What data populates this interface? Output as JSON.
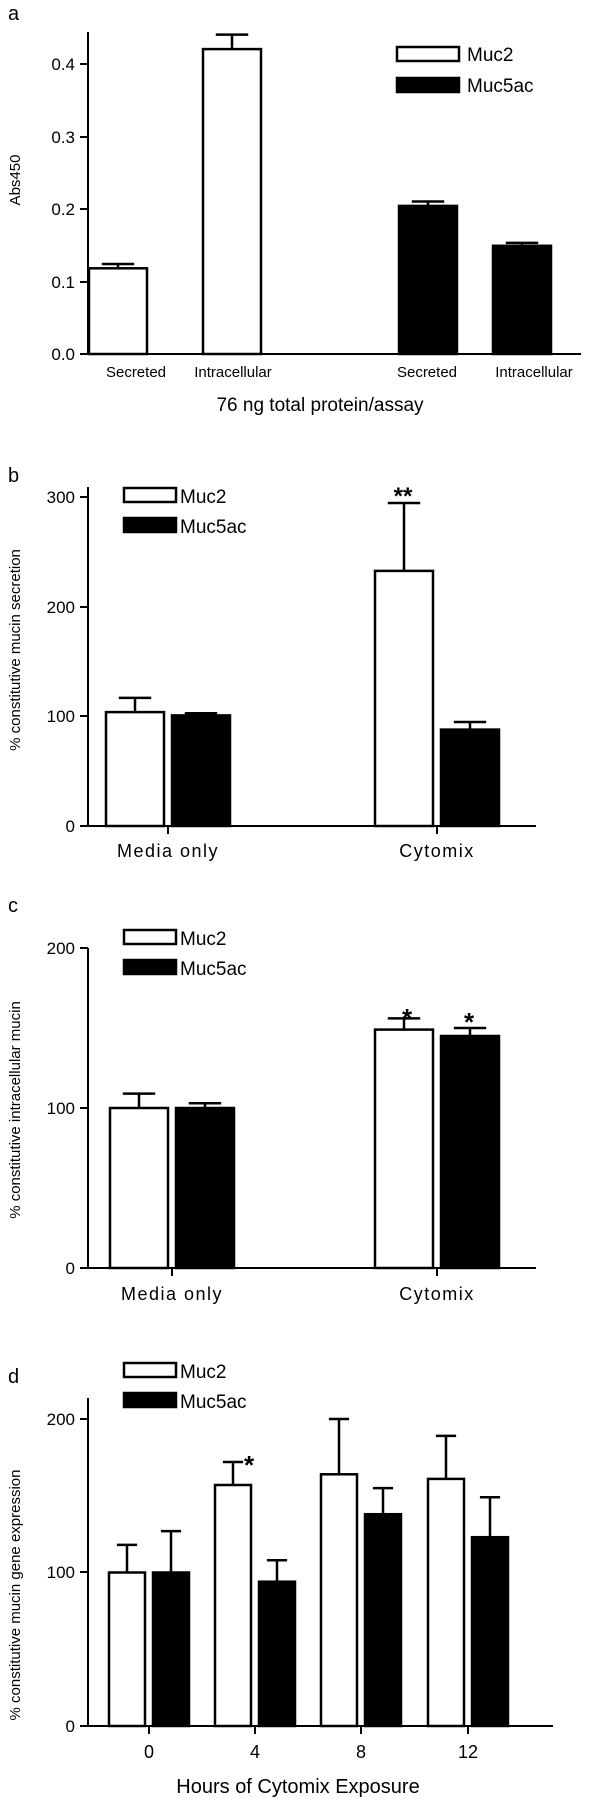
{
  "chart_data": [
    {
      "panel": "a",
      "type": "bar",
      "title": "",
      "ylabel": "Abs450",
      "xlabel": "76 ng total protein/assay",
      "ylim": [
        0,
        0.45
      ],
      "yticks": [
        0.0,
        0.1,
        0.2,
        0.3,
        0.4
      ],
      "ytick_labels": [
        "0.0",
        "0.1",
        "0.2",
        "0.3",
        "0.4"
      ],
      "grid": false,
      "legend": "top-right",
      "series": [
        {
          "name": "Muc2",
          "color": "#ffffff",
          "categories": [
            "Secreted",
            "Intracellular"
          ],
          "values": [
            0.118,
            0.42
          ],
          "errors": [
            0.006,
            0.02
          ]
        },
        {
          "name": "Muc5ac",
          "color": "#000000",
          "categories": [
            "Secreted",
            "Intracellular"
          ],
          "values": [
            0.204,
            0.149
          ],
          "errors": [
            0.006,
            0.004
          ]
        }
      ],
      "annotations": []
    },
    {
      "panel": "b",
      "type": "bar",
      "title": "",
      "ylabel": "% constitutive mucin secretion",
      "xlabel": "",
      "categories": [
        "Media only",
        "Cytomix"
      ],
      "ylim": [
        0,
        320
      ],
      "yticks": [
        0,
        100,
        200,
        300
      ],
      "ytick_labels": [
        "0",
        "100",
        "200",
        "300"
      ],
      "grid": false,
      "legend": "top-left",
      "series": [
        {
          "name": "Muc2",
          "color": "#ffffff",
          "values": [
            104,
            233
          ],
          "errors": [
            13,
            62
          ]
        },
        {
          "name": "Muc5ac",
          "color": "#000000",
          "values": [
            101,
            88
          ],
          "errors": [
            2,
            7
          ]
        }
      ],
      "annotations": [
        {
          "text": "**",
          "category": "Cytomix",
          "series": "Muc2"
        }
      ]
    },
    {
      "panel": "c",
      "type": "bar",
      "title": "",
      "ylabel": "% constitutive intracellular mucin",
      "xlabel": "",
      "categories": [
        "Media only",
        "Cytomix"
      ],
      "ylim": [
        0,
        200
      ],
      "yticks": [
        0,
        100,
        200
      ],
      "ytick_labels": [
        "0",
        "100",
        "200"
      ],
      "grid": false,
      "legend": "top-left",
      "series": [
        {
          "name": "Muc2",
          "color": "#ffffff",
          "values": [
            100,
            149
          ],
          "errors": [
            9,
            7
          ]
        },
        {
          "name": "Muc5ac",
          "color": "#000000",
          "values": [
            100,
            145
          ],
          "errors": [
            3,
            5
          ]
        }
      ],
      "annotations": [
        {
          "text": "*",
          "category": "Cytomix",
          "series": "Muc2"
        },
        {
          "text": "*",
          "category": "Cytomix",
          "series": "Muc5ac"
        }
      ]
    },
    {
      "panel": "d",
      "type": "bar",
      "title": "",
      "ylabel": "% constitutive mucin gene expression",
      "xlabel": "Hours of Cytomix Exposure",
      "categories": [
        "0",
        "4",
        "8",
        "12"
      ],
      "ylim": [
        0,
        200
      ],
      "yticks": [
        0,
        100,
        200
      ],
      "ytick_labels": [
        "0",
        "100",
        "200"
      ],
      "grid": false,
      "legend": "top-left",
      "series": [
        {
          "name": "Muc2",
          "color": "#ffffff",
          "values": [
            100,
            157,
            164,
            161
          ],
          "errors": [
            18,
            15,
            36,
            28
          ]
        },
        {
          "name": "Muc5ac",
          "color": "#000000",
          "values": [
            100,
            94,
            138,
            123
          ],
          "errors": [
            27,
            14,
            17,
            26
          ]
        }
      ],
      "annotations": [
        {
          "text": "*",
          "category": "4",
          "series": "Muc2"
        }
      ]
    }
  ]
}
